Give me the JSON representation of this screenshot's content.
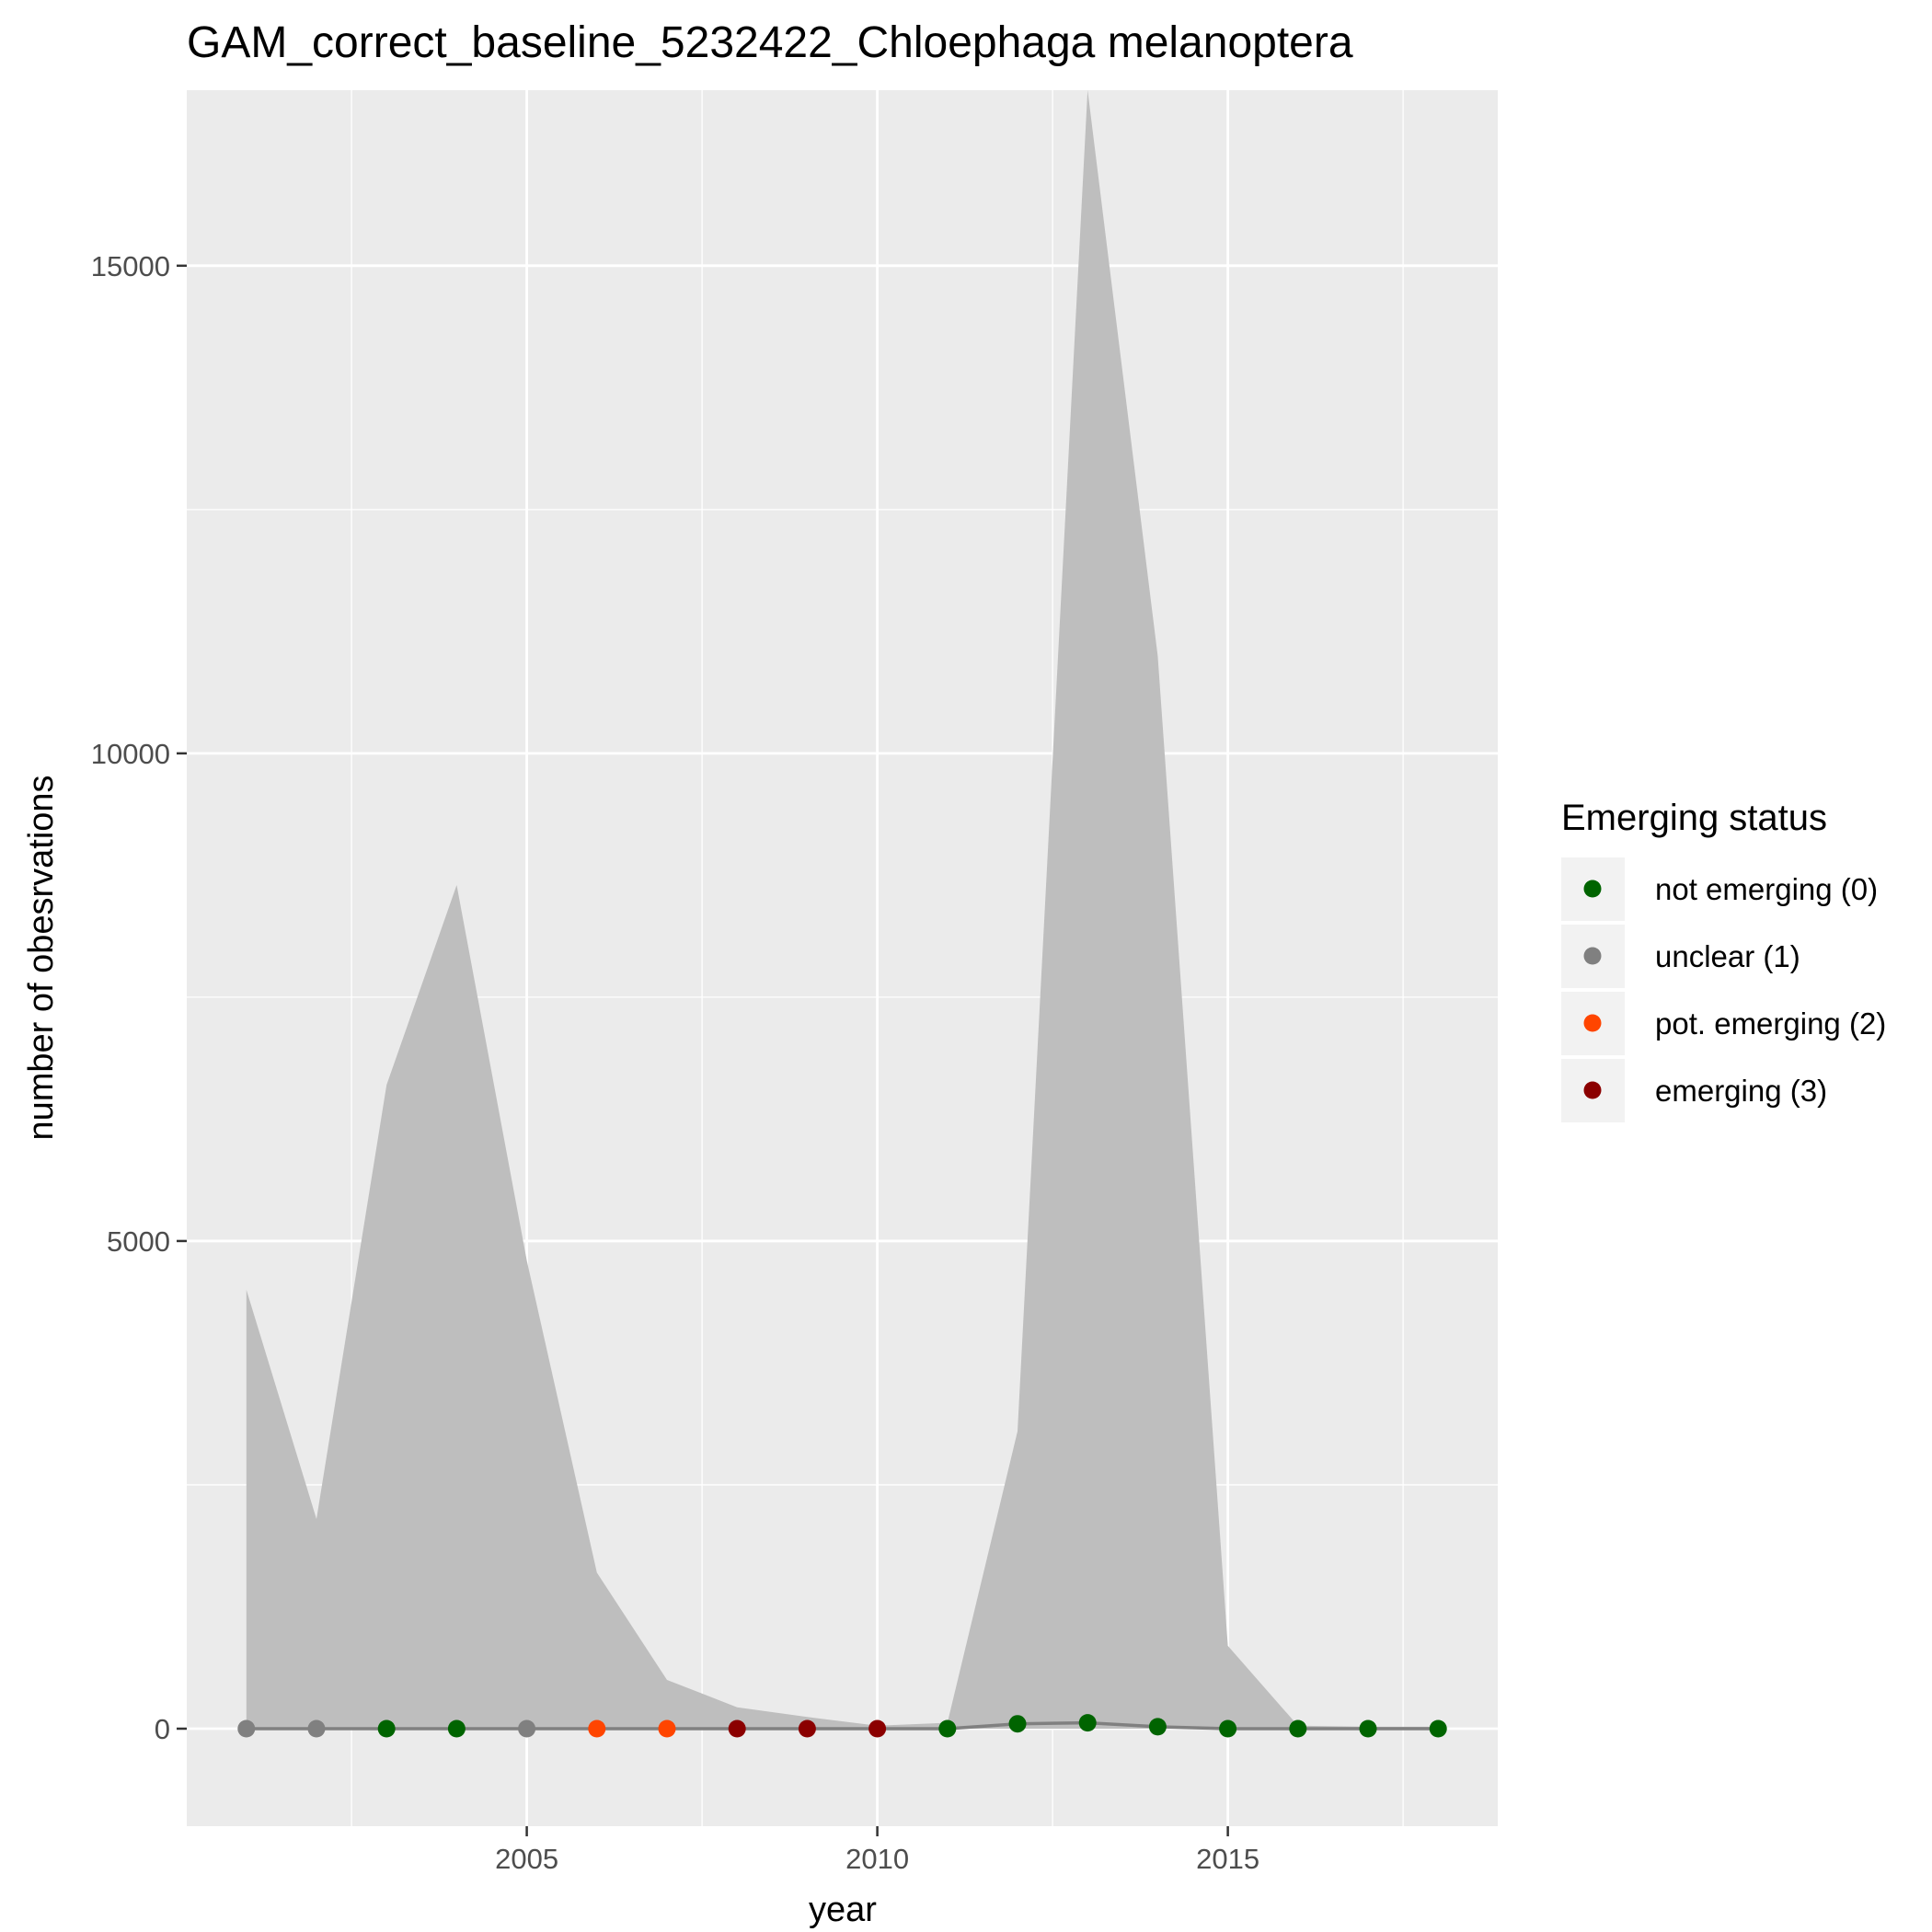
{
  "chart_data": {
    "type": "area",
    "title": "GAM_correct_baseline_5232422_Chloephaga melanoptera",
    "xlabel": "year",
    "ylabel": "number of obesrvations",
    "xlim": [
      2000.15,
      2018.85
    ],
    "ylim": [
      -1000,
      16800
    ],
    "x_ticks": [
      2005,
      2010,
      2015
    ],
    "y_ticks": [
      0,
      5000,
      10000,
      15000
    ],
    "grid": true,
    "legend_position": "right",
    "x": [
      2001,
      2002,
      2003,
      2004,
      2005,
      2006,
      2007,
      2008,
      2009,
      2010,
      2011,
      2012,
      2013,
      2014,
      2015,
      2016,
      2017,
      2018
    ],
    "band_upper": [
      4500,
      2150,
      6600,
      8650,
      4800,
      1600,
      500,
      220,
      120,
      30,
      60,
      3050,
      16800,
      11000,
      850,
      30,
      20,
      20
    ],
    "band_lower": [
      0,
      0,
      0,
      0,
      0,
      0,
      0,
      0,
      0,
      0,
      0,
      0,
      0,
      0,
      0,
      0,
      0,
      0
    ],
    "fit": [
      0,
      0,
      0,
      0,
      0,
      0,
      0,
      0,
      0,
      0,
      0,
      50,
      60,
      20,
      0,
      0,
      0,
      0
    ],
    "status": [
      1,
      1,
      0,
      0,
      1,
      2,
      2,
      3,
      3,
      3,
      0,
      0,
      0,
      0,
      0,
      0,
      0,
      0
    ],
    "legend": {
      "title": "Emerging status",
      "items": [
        {
          "label": "not emerging (0)",
          "color": "#006400"
        },
        {
          "label": "unclear (1)",
          "color": "#808080"
        },
        {
          "label": "pot. emerging (2)",
          "color": "#FF4500"
        },
        {
          "label": "emerging (3)",
          "color": "#8B0000"
        }
      ]
    },
    "colors": {
      "panel_bg": "#EBEBEB",
      "grid": "#FFFFFF",
      "band": "#BEBEBE",
      "fit_line": "#808080",
      "legend_key_bg": "#F2F2F2"
    }
  }
}
